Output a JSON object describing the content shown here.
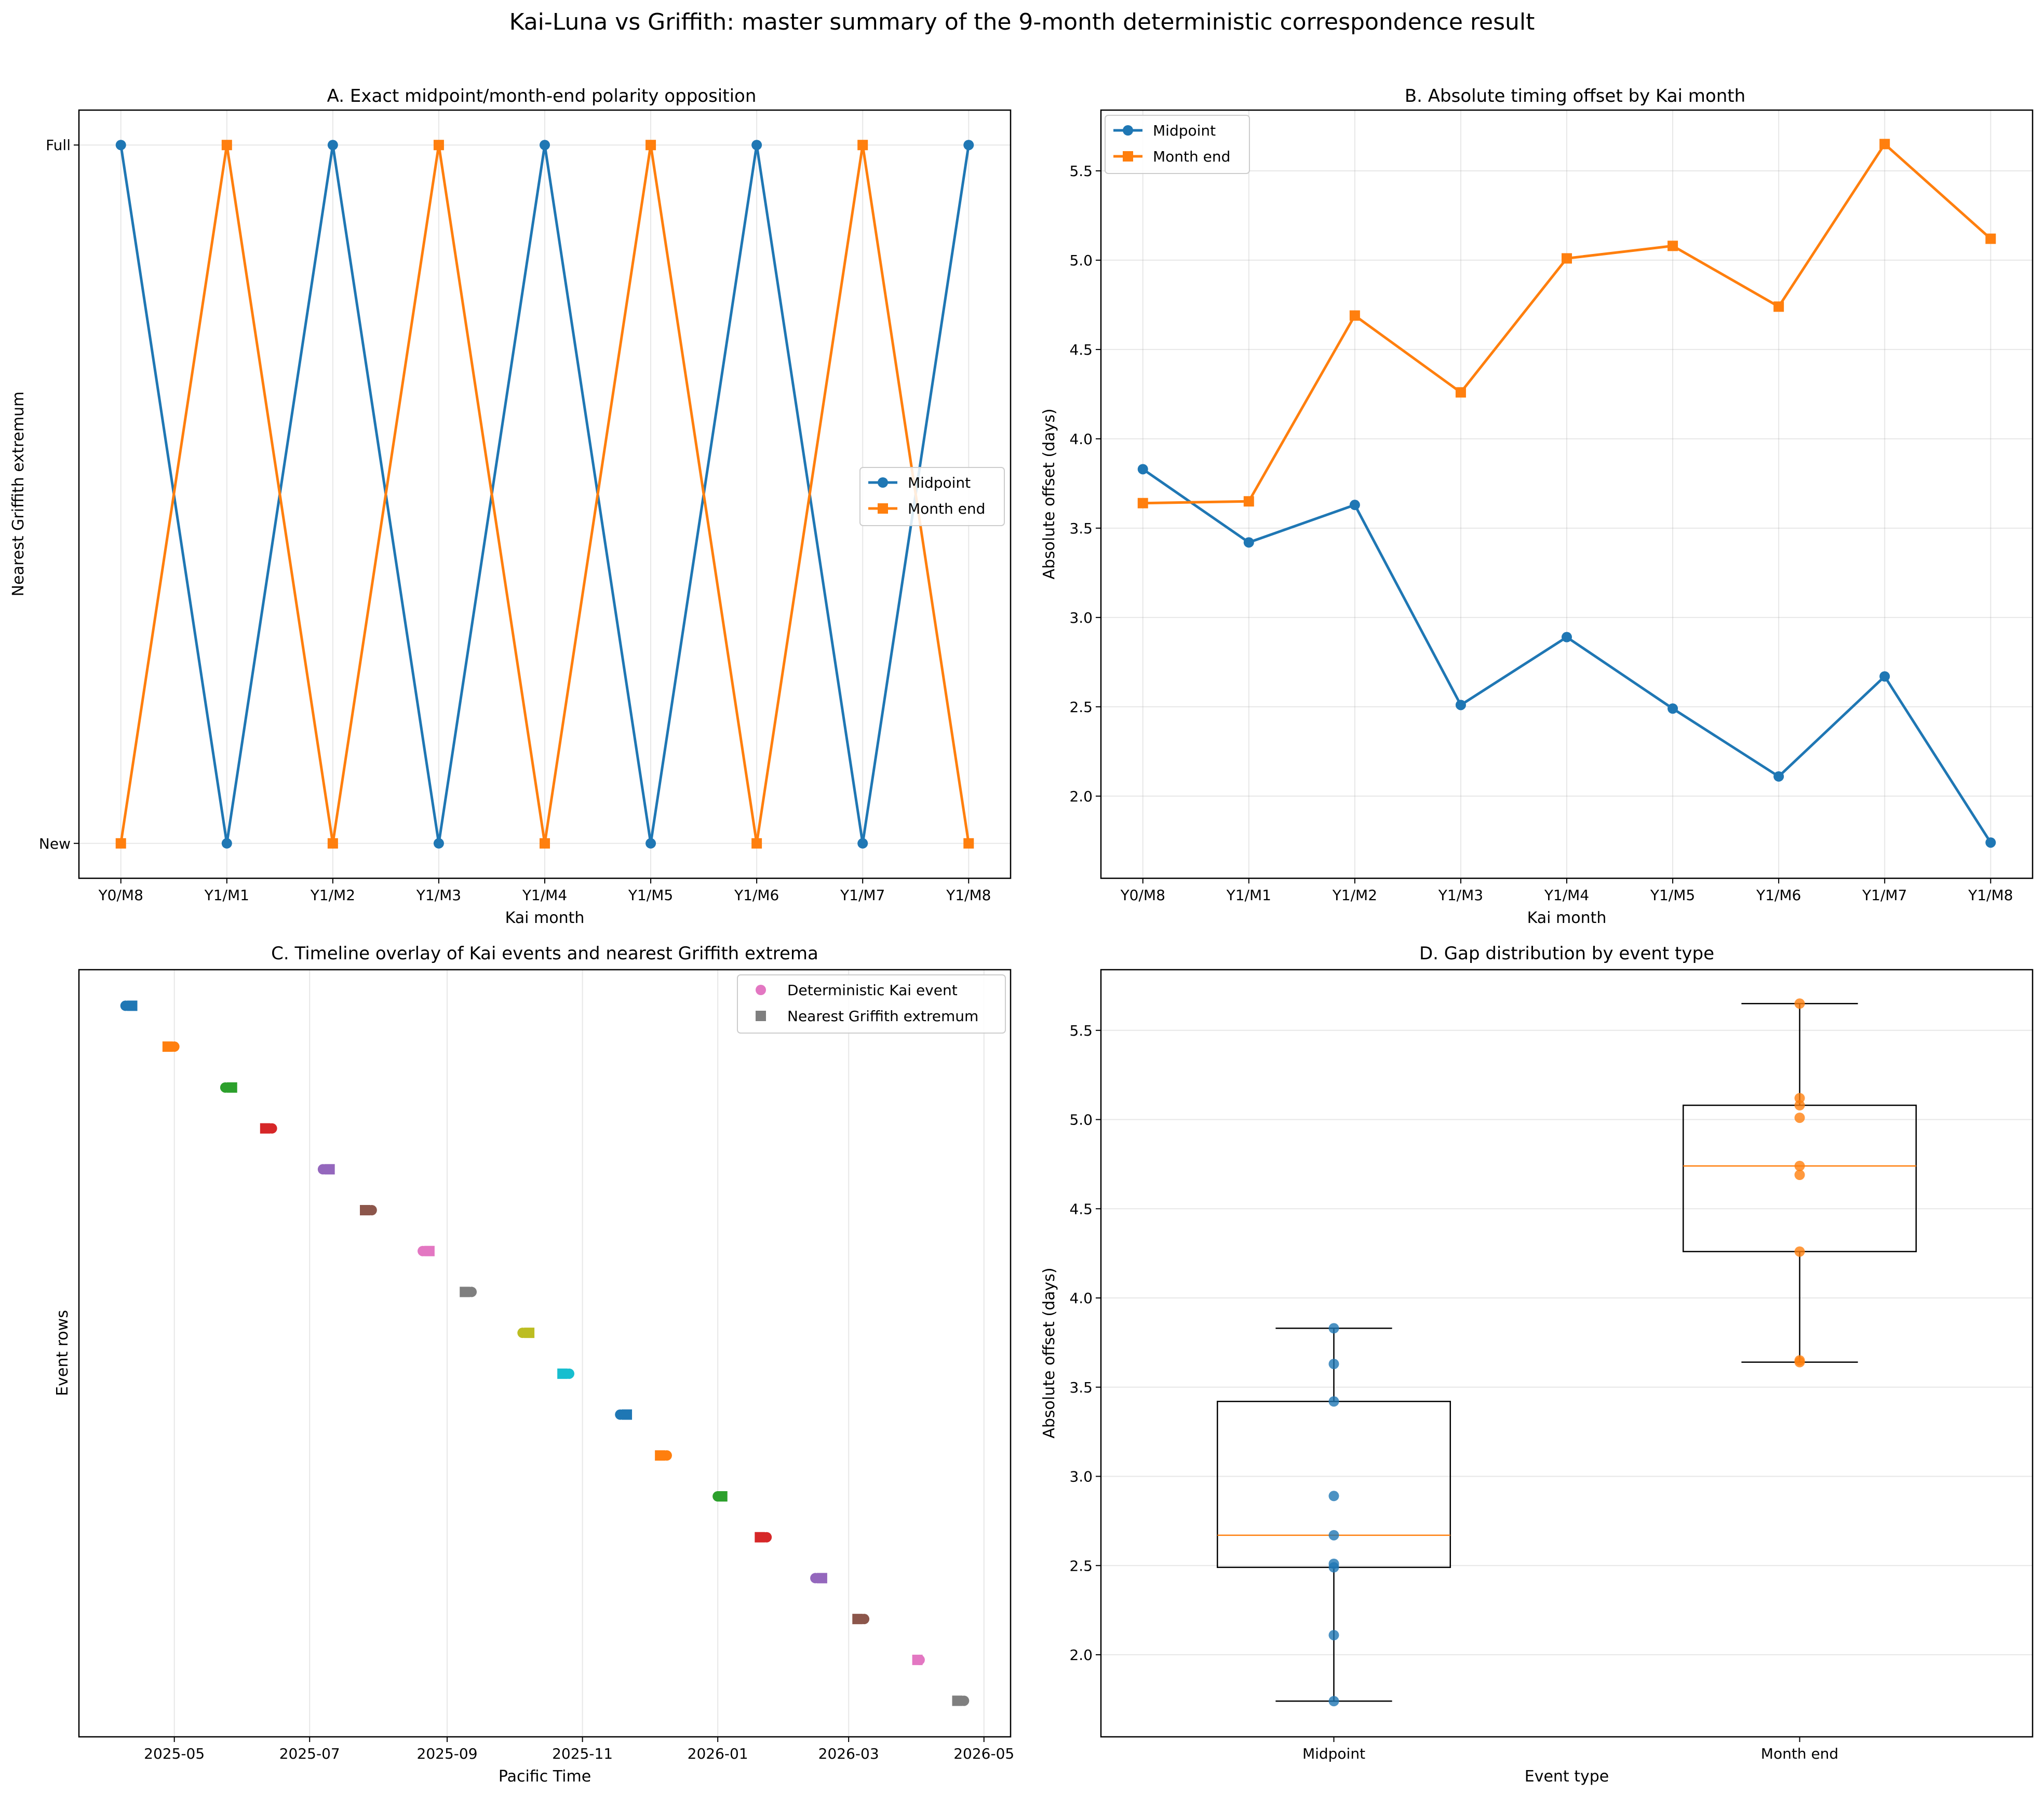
{
  "figure_title": "Kai-Luna vs Griffith: master summary of the 9-month deterministic correspondence result",
  "colors": {
    "midpoint": "#1f77b4",
    "month_end": "#ff7f0e",
    "tab10": [
      "#1f77b4",
      "#ff7f0e",
      "#2ca02c",
      "#d62728",
      "#9467bd",
      "#8c564b",
      "#e377c2",
      "#7f7f7f",
      "#bcbd22",
      "#17becf"
    ]
  },
  "chart_data": [
    {
      "id": "A",
      "type": "line",
      "title": "A. Exact midpoint/month-end polarity opposition",
      "xlabel": "Kai month",
      "ylabel": "Nearest Griffith extremum",
      "categories": [
        "Y0/M8",
        "Y1/M1",
        "Y1/M2",
        "Y1/M3",
        "Y1/M4",
        "Y1/M5",
        "Y1/M6",
        "Y1/M7",
        "Y1/M8"
      ],
      "yticklabels": [
        "New",
        "Full"
      ],
      "ylim": [
        -0.05,
        1.05
      ],
      "legend_location": "center-right",
      "series": [
        {
          "name": "Midpoint",
          "marker": "circle",
          "values": [
            1,
            0,
            1,
            0,
            1,
            0,
            1,
            0,
            1
          ]
        },
        {
          "name": "Month end",
          "marker": "square",
          "values": [
            0,
            1,
            0,
            1,
            0,
            1,
            0,
            1,
            0
          ]
        }
      ]
    },
    {
      "id": "B",
      "type": "line",
      "title": "B. Absolute timing offset by Kai month",
      "xlabel": "Kai month",
      "ylabel": "Absolute offset (days)",
      "categories": [
        "Y0/M8",
        "Y1/M1",
        "Y1/M2",
        "Y1/M3",
        "Y1/M4",
        "Y1/M5",
        "Y1/M6",
        "Y1/M7",
        "Y1/M8"
      ],
      "ylim": [
        1.54,
        5.84
      ],
      "yticks": [
        "2.0",
        "2.5",
        "3.0",
        "3.5",
        "4.0",
        "4.5",
        "5.0",
        "5.5"
      ],
      "legend_location": "top-left",
      "series": [
        {
          "name": "Midpoint",
          "marker": "circle",
          "values": [
            3.83,
            3.42,
            3.63,
            2.51,
            2.89,
            2.49,
            2.11,
            2.67,
            1.74
          ]
        },
        {
          "name": "Month end",
          "marker": "square",
          "values": [
            3.64,
            3.65,
            4.69,
            4.26,
            5.01,
            5.08,
            4.74,
            5.65,
            5.12
          ]
        }
      ]
    },
    {
      "id": "C",
      "type": "scatter",
      "title": "C. Timeline overlay of Kai events and nearest Griffith extrema",
      "xlabel": "Pacific Time",
      "ylabel": "Event rows",
      "x_range": [
        "2025-03-19",
        "2026-05-13"
      ],
      "xticks": [
        {
          "date": "2025-05-01",
          "label": "2025-05"
        },
        {
          "date": "2025-07-01",
          "label": "2025-07"
        },
        {
          "date": "2025-09-01",
          "label": "2025-09"
        },
        {
          "date": "2025-11-01",
          "label": "2025-11"
        },
        {
          "date": "2026-01-01",
          "label": "2026-01"
        },
        {
          "date": "2026-03-01",
          "label": "2026-03"
        },
        {
          "date": "2026-05-01",
          "label": "2026-05"
        }
      ],
      "legend_location": "top-right",
      "legend": [
        {
          "label": "Deterministic Kai event",
          "marker": "circle",
          "color": "#e377c2"
        },
        {
          "label": "Nearest Griffith extremum",
          "marker": "square",
          "color": "#7f7f7f"
        }
      ],
      "rows": [
        {
          "kai": "2025-04-09",
          "griffith": "2025-04-12"
        },
        {
          "kai": "2025-05-01",
          "griffith": "2025-04-28"
        },
        {
          "kai": "2025-05-24",
          "griffith": "2025-05-27"
        },
        {
          "kai": "2025-06-14",
          "griffith": "2025-06-11"
        },
        {
          "kai": "2025-07-07",
          "griffith": "2025-07-10"
        },
        {
          "kai": "2025-07-29",
          "griffith": "2025-07-26"
        },
        {
          "kai": "2025-08-21",
          "griffith": "2025-08-24"
        },
        {
          "kai": "2025-09-12",
          "griffith": "2025-09-09"
        },
        {
          "kai": "2025-10-05",
          "griffith": "2025-10-08"
        },
        {
          "kai": "2025-10-26",
          "griffith": "2025-10-23"
        },
        {
          "kai": "2025-11-18",
          "griffith": "2025-11-21"
        },
        {
          "kai": "2025-12-09",
          "griffith": "2025-12-06"
        },
        {
          "kai": "2026-01-01",
          "griffith": "2026-01-03"
        },
        {
          "kai": "2026-01-23",
          "griffith": "2026-01-20"
        },
        {
          "kai": "2026-02-14",
          "griffith": "2026-02-17"
        },
        {
          "kai": "2026-03-08",
          "griffith": "2026-03-05"
        },
        {
          "kai": "2026-04-02",
          "griffith": "2026-04-01"
        },
        {
          "kai": "2026-04-22",
          "griffith": "2026-04-19"
        }
      ]
    },
    {
      "id": "D",
      "type": "box",
      "title": "D. Gap distribution by event type",
      "xlabel": "Event type",
      "ylabel": "Absolute offset (days)",
      "ylim": [
        1.54,
        5.84
      ],
      "yticks": [
        "2.0",
        "2.5",
        "3.0",
        "3.5",
        "4.0",
        "4.5",
        "5.0",
        "5.5"
      ],
      "categories": [
        "Midpoint",
        "Month end"
      ],
      "boxes": [
        {
          "name": "Midpoint",
          "q1": 2.49,
          "median": 2.67,
          "q3": 3.42,
          "whisker_low": 1.74,
          "whisker_high": 3.83,
          "points": [
            3.83,
            3.42,
            3.63,
            2.51,
            2.89,
            2.49,
            2.11,
            2.67,
            1.74
          ]
        },
        {
          "name": "Month end",
          "q1": 4.26,
          "median": 4.74,
          "q3": 5.08,
          "whisker_low": 3.64,
          "whisker_high": 5.65,
          "points": [
            3.64,
            3.65,
            4.69,
            4.26,
            5.01,
            5.08,
            4.74,
            5.65,
            5.12
          ]
        }
      ]
    }
  ]
}
